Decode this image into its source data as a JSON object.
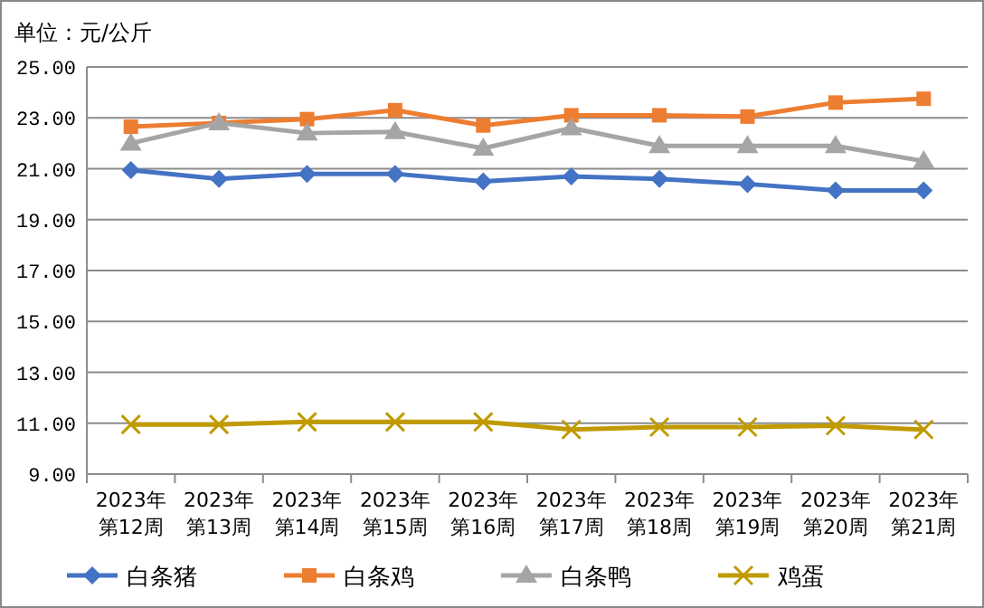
{
  "chart_data": {
    "type": "line",
    "ylabel": "单位：元/公斤",
    "categories": [
      "2023年第12周",
      "2023年第13周",
      "2023年第14周",
      "2023年第15周",
      "2023年第16周",
      "2023年第17周",
      "2023年第18周",
      "2023年第19周",
      "2023年第20周",
      "2023年第21周"
    ],
    "series": [
      {
        "name": "白条猪",
        "color": "#4472c4",
        "marker": "diamond",
        "values": [
          20.95,
          20.6,
          20.8,
          20.8,
          20.5,
          20.7,
          20.6,
          20.4,
          20.15,
          20.15
        ]
      },
      {
        "name": "白条鸡",
        "color": "#ed7d31",
        "marker": "square",
        "values": [
          22.65,
          22.8,
          22.95,
          23.3,
          22.7,
          23.1,
          23.1,
          23.05,
          23.6,
          23.75
        ]
      },
      {
        "name": "白条鸭",
        "color": "#a5a5a5",
        "marker": "triangle",
        "values": [
          22.0,
          22.8,
          22.4,
          22.45,
          21.8,
          22.6,
          21.9,
          21.9,
          21.9,
          21.3
        ]
      },
      {
        "name": "鸡蛋",
        "color": "#c09a00",
        "marker": "cross",
        "values": [
          10.95,
          10.95,
          11.05,
          11.05,
          11.05,
          10.75,
          10.85,
          10.85,
          10.9,
          10.75
        ]
      }
    ],
    "ylim": [
      9,
      25
    ],
    "yticks": [
      {
        "value": 9,
        "label": "9.00"
      },
      {
        "value": 11,
        "label": "11.00"
      },
      {
        "value": 13,
        "label": "13.00"
      },
      {
        "value": 15,
        "label": "15.00"
      },
      {
        "value": 17,
        "label": "17.00"
      },
      {
        "value": 19,
        "label": "19.00"
      },
      {
        "value": 21,
        "label": "21.00"
      },
      {
        "value": 23,
        "label": "23.00"
      },
      {
        "value": 25,
        "label": "25.00"
      }
    ],
    "grid": "y",
    "legend": "bottom",
    "line_style": "solid"
  }
}
